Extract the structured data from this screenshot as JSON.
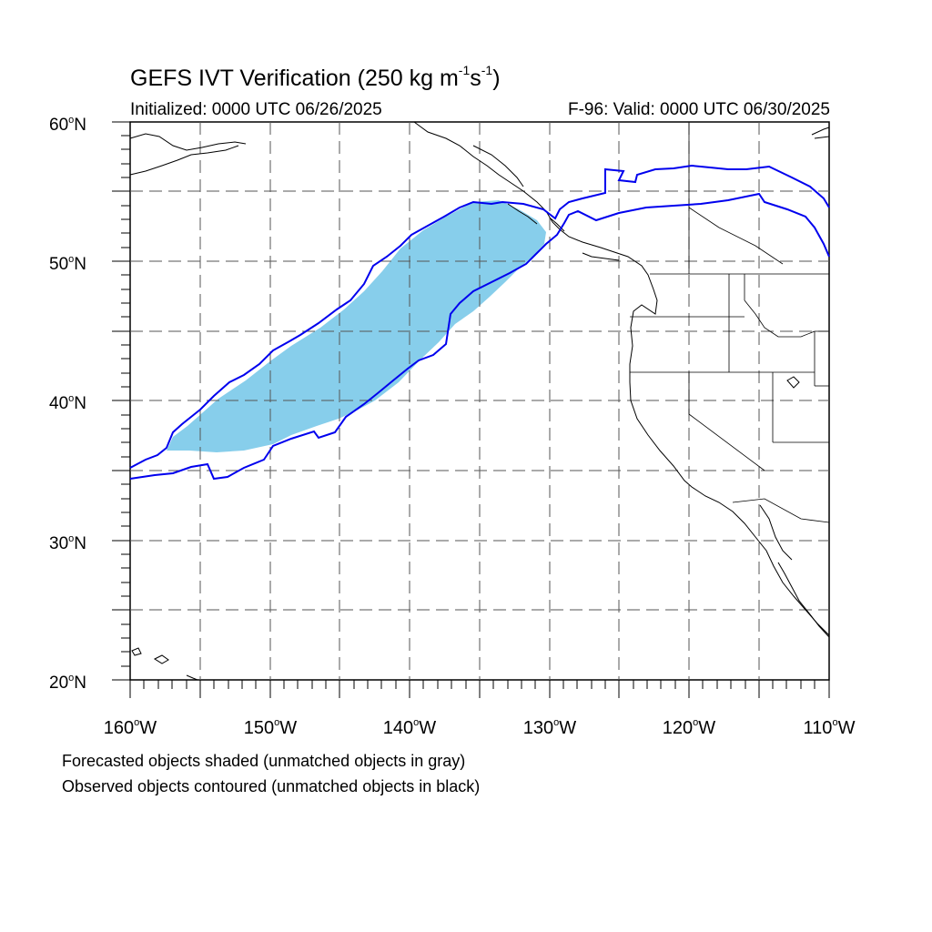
{
  "title": {
    "main": "GEFS IVT Verification (250 kg m",
    "exp1": "-1",
    "mid": "s",
    "exp2": "-1",
    "close": ")"
  },
  "init_text": "Initialized: 0000 UTC 06/26/2025",
  "valid_text": "F-96: Valid: 0000 UTC 06/30/2025",
  "lat_labels": [
    {
      "deg": "60",
      "hem": "N"
    },
    {
      "deg": "50",
      "hem": "N"
    },
    {
      "deg": "40",
      "hem": "N"
    },
    {
      "deg": "30",
      "hem": "N"
    },
    {
      "deg": "20",
      "hem": "N"
    }
  ],
  "lon_labels": [
    {
      "deg": "160",
      "hem": "W"
    },
    {
      "deg": "150",
      "hem": "W"
    },
    {
      "deg": "140",
      "hem": "W"
    },
    {
      "deg": "130",
      "hem": "W"
    },
    {
      "deg": "120",
      "hem": "W"
    },
    {
      "deg": "110",
      "hem": "W"
    }
  ],
  "extent": {
    "lon": [
      -160,
      -110
    ],
    "lat": [
      20,
      60
    ]
  },
  "legend": {
    "line1": "Forecasted objects shaded (unmatched objects in gray)",
    "line2": "Observed objects contoured (unmatched objects in black)"
  },
  "colors": {
    "forecast_fill": "#87CEEB",
    "observed_contour": "#0000EE",
    "coast": "#000000",
    "grid": "#555555"
  }
}
